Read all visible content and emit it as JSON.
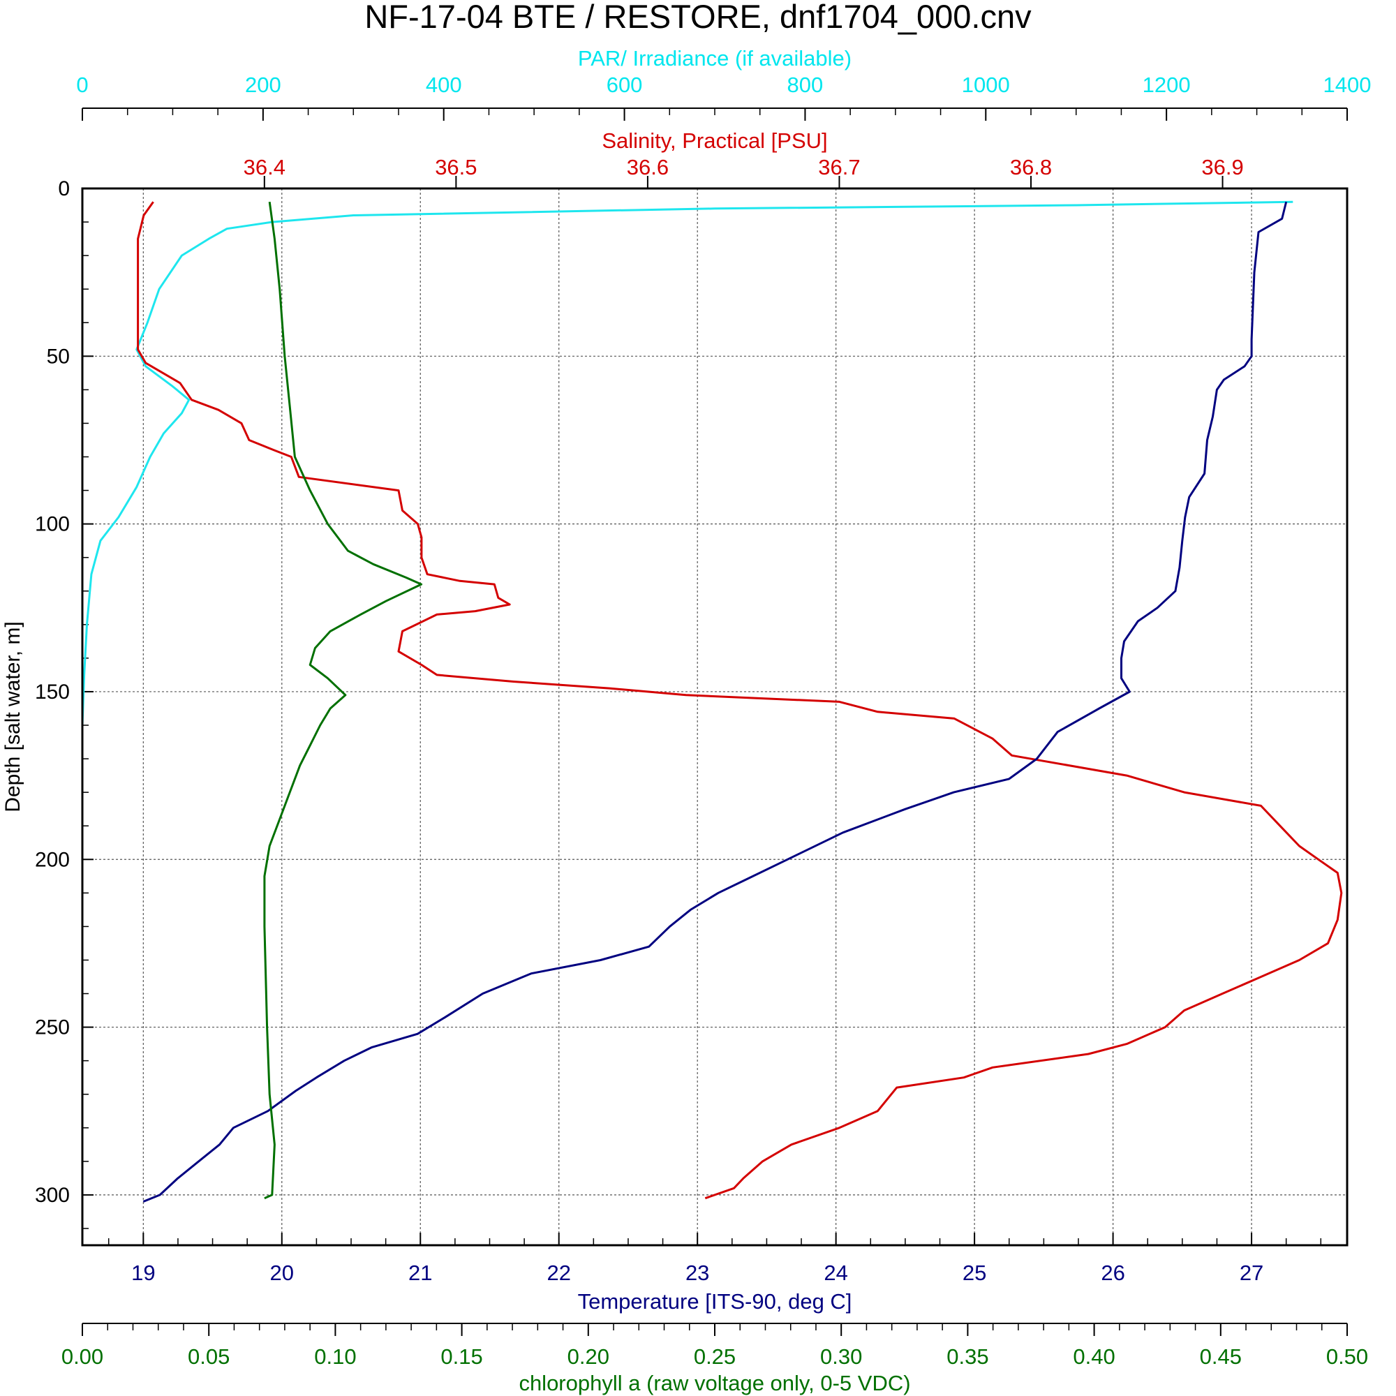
{
  "title": "NF-17-04 BTE / RESTORE, dnf1704_000.cnv",
  "chart_data": {
    "type": "line",
    "title": "NF-17-04 BTE / RESTORE, dnf1704_000.cnv",
    "y_axis": {
      "label": "Depth [salt water, m]",
      "range": [
        0,
        315
      ],
      "inverted": true,
      "ticks": [
        "0",
        "50",
        "100",
        "150",
        "200",
        "250",
        "300"
      ],
      "tick_values": [
        0,
        50,
        100,
        150,
        200,
        250,
        300
      ]
    },
    "x_axes": [
      {
        "id": "par",
        "label": "PAR/ Irradiance (if available)",
        "position": "top-outer",
        "color": "#00e6ee",
        "range": [
          0,
          1400
        ],
        "tick_values": [
          0,
          200,
          400,
          600,
          800,
          1000,
          1200,
          1400
        ],
        "ticks": [
          "0",
          "200",
          "400",
          "600",
          "800",
          "1000",
          "1200",
          "1400"
        ]
      },
      {
        "id": "salinity",
        "label": "Salinity, Practical [PSU]",
        "position": "top-inner",
        "color": "#d40000",
        "range": [
          36.305,
          36.965
        ],
        "tick_values": [
          36.4,
          36.5,
          36.6,
          36.7,
          36.8,
          36.9
        ],
        "ticks": [
          "36.4",
          "36.5",
          "36.6",
          "36.7",
          "36.8",
          "36.9"
        ]
      },
      {
        "id": "temperature",
        "label": "Temperature [ITS-90, deg C]",
        "position": "bottom-inner",
        "color": "#000080",
        "range": [
          18.56,
          27.69
        ],
        "tick_values": [
          19,
          20,
          21,
          22,
          23,
          24,
          25,
          26,
          27
        ],
        "ticks": [
          "19",
          "20",
          "21",
          "22",
          "23",
          "24",
          "25",
          "26",
          "27"
        ]
      },
      {
        "id": "chlorophyll",
        "label": "chlorophyll a (raw voltage only, 0-5 VDC)",
        "position": "bottom-outer",
        "color": "#007000",
        "range": [
          0,
          0.5
        ],
        "tick_values": [
          0,
          0.05,
          0.1,
          0.15,
          0.2,
          0.25,
          0.3,
          0.35,
          0.4,
          0.45,
          0.5
        ],
        "ticks": [
          "0.00",
          "0.05",
          "0.10",
          "0.15",
          "0.20",
          "0.25",
          "0.30",
          "0.35",
          "0.40",
          "0.45",
          "0.50"
        ]
      }
    ],
    "grid": true,
    "series": [
      {
        "axis": "par",
        "color": "#1ee6ee",
        "points": [
          [
            1340,
            4
          ],
          [
            1100,
            5
          ],
          [
            700,
            6
          ],
          [
            300,
            8
          ],
          [
            210,
            10
          ],
          [
            160,
            12
          ],
          [
            140,
            15
          ],
          [
            110,
            20
          ],
          [
            85,
            30
          ],
          [
            72,
            40
          ],
          [
            60,
            48
          ],
          [
            70,
            53
          ],
          [
            100,
            59
          ],
          [
            118,
            63
          ],
          [
            110,
            67
          ],
          [
            90,
            73
          ],
          [
            75,
            80
          ],
          [
            60,
            89
          ],
          [
            40,
            98
          ],
          [
            20,
            105
          ],
          [
            10,
            115
          ],
          [
            5,
            130
          ],
          [
            2,
            145
          ],
          [
            0,
            160
          ]
        ]
      },
      {
        "axis": "salinity",
        "color": "#d40000",
        "points": [
          [
            36.342,
            4
          ],
          [
            36.337,
            8
          ],
          [
            36.334,
            15
          ],
          [
            36.334,
            30
          ],
          [
            36.334,
            48
          ],
          [
            36.338,
            52
          ],
          [
            36.356,
            58
          ],
          [
            36.362,
            63
          ],
          [
            36.376,
            66
          ],
          [
            36.388,
            70
          ],
          [
            36.392,
            75
          ],
          [
            36.405,
            78
          ],
          [
            36.414,
            80
          ],
          [
            36.418,
            86
          ],
          [
            36.47,
            90
          ],
          [
            36.472,
            96
          ],
          [
            36.48,
            100
          ],
          [
            36.482,
            104
          ],
          [
            36.482,
            110
          ],
          [
            36.485,
            115
          ],
          [
            36.502,
            117
          ],
          [
            36.52,
            118
          ],
          [
            36.522,
            122
          ],
          [
            36.528,
            124
          ],
          [
            36.51,
            126
          ],
          [
            36.49,
            127
          ],
          [
            36.472,
            132
          ],
          [
            36.47,
            138
          ],
          [
            36.482,
            142
          ],
          [
            36.49,
            145
          ],
          [
            36.53,
            147
          ],
          [
            36.58,
            149
          ],
          [
            36.62,
            151
          ],
          [
            36.7,
            153
          ],
          [
            36.72,
            156
          ],
          [
            36.76,
            158
          ],
          [
            36.78,
            164
          ],
          [
            36.79,
            169
          ],
          [
            36.85,
            175
          ],
          [
            36.88,
            180
          ],
          [
            36.92,
            184
          ],
          [
            36.93,
            190
          ],
          [
            36.94,
            196
          ],
          [
            36.95,
            200
          ],
          [
            36.96,
            204
          ],
          [
            36.962,
            210
          ],
          [
            36.96,
            218
          ],
          [
            36.955,
            225
          ],
          [
            36.94,
            230
          ],
          [
            36.92,
            235
          ],
          [
            36.9,
            240
          ],
          [
            36.88,
            245
          ],
          [
            36.87,
            250
          ],
          [
            36.85,
            255
          ],
          [
            36.83,
            258
          ],
          [
            36.78,
            262
          ],
          [
            36.765,
            265
          ],
          [
            36.73,
            268
          ],
          [
            36.72,
            275
          ],
          [
            36.7,
            280
          ],
          [
            36.675,
            285
          ],
          [
            36.66,
            290
          ],
          [
            36.65,
            295
          ],
          [
            36.645,
            298
          ],
          [
            36.63,
            301
          ]
        ]
      },
      {
        "axis": "temperature",
        "color": "#000080",
        "points": [
          [
            27.25,
            4
          ],
          [
            27.22,
            9
          ],
          [
            27.05,
            13
          ],
          [
            27.02,
            25
          ],
          [
            27.0,
            45
          ],
          [
            27.0,
            50
          ],
          [
            26.95,
            53
          ],
          [
            26.8,
            57
          ],
          [
            26.75,
            60
          ],
          [
            26.72,
            68
          ],
          [
            26.68,
            75
          ],
          [
            26.66,
            85
          ],
          [
            26.55,
            92
          ],
          [
            26.52,
            98
          ],
          [
            26.5,
            105
          ],
          [
            26.48,
            113
          ],
          [
            26.45,
            120
          ],
          [
            26.32,
            125
          ],
          [
            26.18,
            129
          ],
          [
            26.08,
            135
          ],
          [
            26.06,
            140
          ],
          [
            26.06,
            146
          ],
          [
            26.12,
            150
          ],
          [
            25.9,
            155
          ],
          [
            25.6,
            162
          ],
          [
            25.45,
            170
          ],
          [
            25.25,
            176
          ],
          [
            24.85,
            180
          ],
          [
            24.5,
            185
          ],
          [
            24.05,
            192
          ],
          [
            23.65,
            200
          ],
          [
            23.35,
            206
          ],
          [
            23.15,
            210
          ],
          [
            22.95,
            215
          ],
          [
            22.8,
            220
          ],
          [
            22.65,
            226
          ],
          [
            22.3,
            230
          ],
          [
            21.8,
            234
          ],
          [
            21.45,
            240
          ],
          [
            21.18,
            247
          ],
          [
            20.98,
            252
          ],
          [
            20.65,
            256
          ],
          [
            20.45,
            260
          ],
          [
            20.25,
            265
          ],
          [
            20.1,
            269
          ],
          [
            19.9,
            275
          ],
          [
            19.65,
            280
          ],
          [
            19.55,
            285
          ],
          [
            19.4,
            290
          ],
          [
            19.25,
            295
          ],
          [
            19.12,
            300
          ],
          [
            19.0,
            302
          ]
        ]
      },
      {
        "axis": "chlorophyll",
        "color": "#007000",
        "points": [
          [
            0.074,
            4
          ],
          [
            0.076,
            15
          ],
          [
            0.078,
            30
          ],
          [
            0.08,
            50
          ],
          [
            0.082,
            65
          ],
          [
            0.084,
            80
          ],
          [
            0.09,
            90
          ],
          [
            0.097,
            100
          ],
          [
            0.105,
            108
          ],
          [
            0.115,
            112
          ],
          [
            0.128,
            116
          ],
          [
            0.134,
            118
          ],
          [
            0.12,
            123
          ],
          [
            0.11,
            127
          ],
          [
            0.098,
            132
          ],
          [
            0.092,
            137
          ],
          [
            0.09,
            142
          ],
          [
            0.097,
            146
          ],
          [
            0.104,
            151
          ],
          [
            0.098,
            155
          ],
          [
            0.094,
            160
          ],
          [
            0.09,
            166
          ],
          [
            0.086,
            172
          ],
          [
            0.082,
            180
          ],
          [
            0.078,
            188
          ],
          [
            0.074,
            196
          ],
          [
            0.072,
            205
          ],
          [
            0.072,
            220
          ],
          [
            0.073,
            250
          ],
          [
            0.074,
            270
          ],
          [
            0.076,
            285
          ],
          [
            0.075,
            300
          ],
          [
            0.072,
            301
          ]
        ]
      }
    ]
  }
}
